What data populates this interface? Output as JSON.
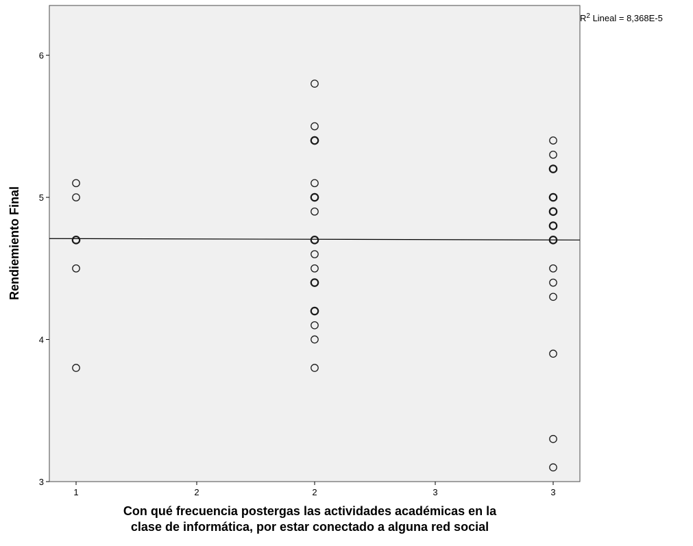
{
  "chart_data": {
    "type": "scatter",
    "title": "",
    "xlabel_lines": [
      "Con qué frecuencia postergas las actividades académicas en la",
      "clase de informática, por estar conectado a alguna red social"
    ],
    "ylabel": "Rendiemiento Final",
    "x_ticks": [
      "1",
      "2",
      "2",
      "3",
      "3"
    ],
    "y_ticks": [
      "3",
      "4",
      "5",
      "6"
    ],
    "ylim": [
      3,
      6.35
    ],
    "grid": false,
    "background_color": "#f0f0f0",
    "marker": "open-circle",
    "fit_line": {
      "label_prefix": "R",
      "label_sup": "2",
      "label_rest": " Lineal = 8,368E-5",
      "y_at_first": 4.71,
      "y_at_last": 4.7
    },
    "groups": [
      {
        "x_label": "1",
        "y": [
          5.1,
          5.0,
          4.7,
          4.7,
          4.5,
          3.8
        ]
      },
      {
        "x_label": "2",
        "y": [
          5.8,
          5.5,
          5.4,
          5.4,
          5.1,
          5.0,
          5.0,
          4.9,
          4.7,
          4.7,
          4.6,
          4.5,
          4.4,
          4.4,
          4.2,
          4.2,
          4.1,
          4.0,
          3.8
        ]
      },
      {
        "x_label": "3",
        "y": [
          5.4,
          5.3,
          5.2,
          5.2,
          5.0,
          5.0,
          4.9,
          4.9,
          4.8,
          4.8,
          4.7,
          4.7,
          4.5,
          4.4,
          4.3,
          3.9,
          3.3,
          3.1
        ]
      }
    ]
  }
}
